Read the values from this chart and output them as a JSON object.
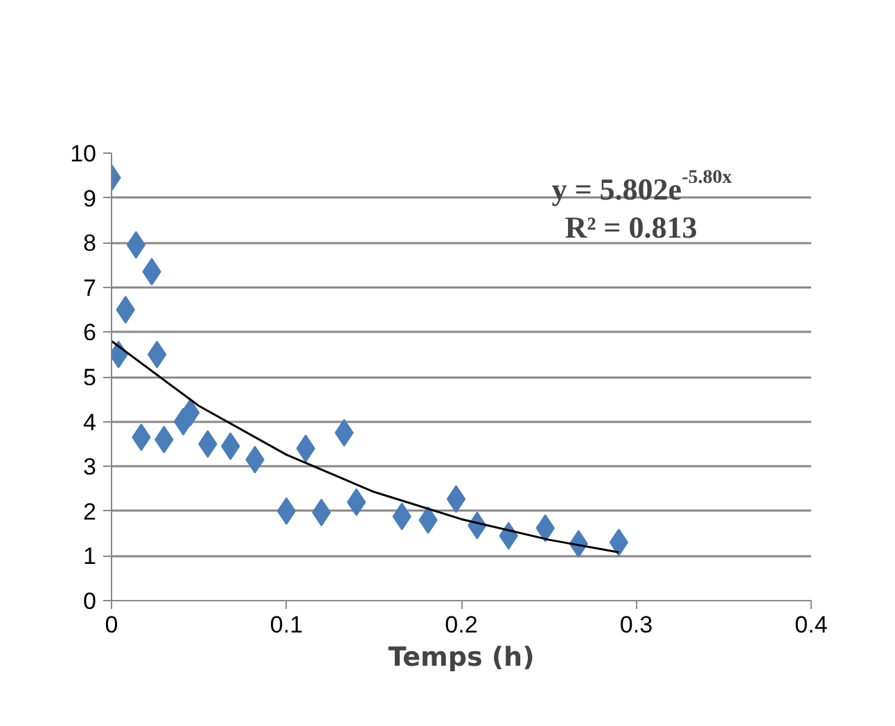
{
  "chart_data": {
    "type": "scatter",
    "xlabel": "Temps (h)",
    "xlim": [
      0,
      0.4
    ],
    "xticks": [
      0,
      0.1,
      0.2,
      0.3,
      0.4
    ],
    "ylim": [
      0,
      10
    ],
    "yticks": [
      0,
      1,
      2,
      3,
      4,
      5,
      6,
      7,
      8,
      9,
      10
    ],
    "grid": "y",
    "marker": "diamond",
    "annotations": [
      "y = 5.802e$^{-5.80x}$",
      "R² = 0.813"
    ],
    "series": [
      {
        "color": "#4a7ebb",
        "x": [
          0,
          0.004,
          0.008,
          0.014,
          0.017,
          0.023,
          0.026,
          0.03,
          0.041,
          0.045,
          0.055,
          0.068,
          0.082,
          0.1,
          0.111,
          0.12,
          0.133,
          0.14,
          0.166,
          0.181,
          0.197,
          0.209,
          0.227,
          0.248,
          0.267,
          0.29
        ],
        "values": [
          9.45,
          5.5,
          6.5,
          7.95,
          3.65,
          7.35,
          5.5,
          3.6,
          4.0,
          4.2,
          3.5,
          3.45,
          3.15,
          2.0,
          3.4,
          1.97,
          3.75,
          2.2,
          1.88,
          1.8,
          2.27,
          1.68,
          1.45,
          1.62,
          1.27,
          1.3
        ]
      },
      {
        "type": "line",
        "marker": "none",
        "color": "#000000",
        "x": [
          0,
          0.05,
          0.1,
          0.15,
          0.2,
          0.25,
          0.29
        ],
        "values": [
          5.8,
          4.35,
          3.26,
          2.43,
          1.82,
          1.36,
          1.08
        ]
      }
    ]
  }
}
